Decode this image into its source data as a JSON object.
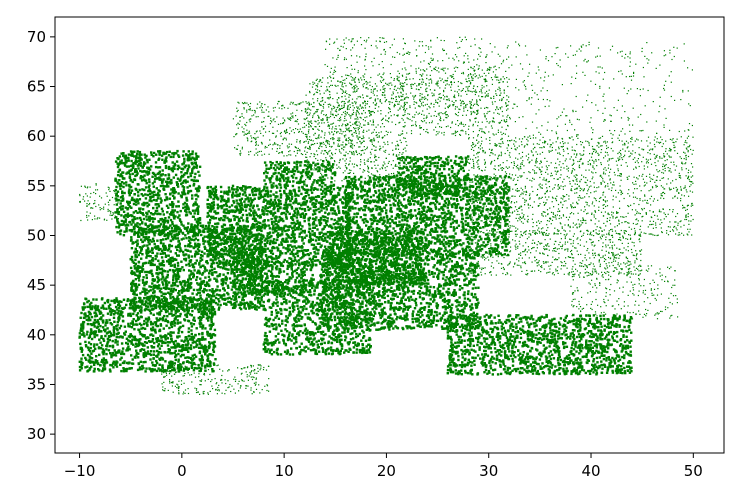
{
  "chart_data": {
    "type": "scatter",
    "title": "",
    "xlabel": "",
    "ylabel": "",
    "xlim": [
      -12.4,
      53
    ],
    "ylim": [
      28.1,
      72.0
    ],
    "xticks": [
      -10,
      0,
      10,
      20,
      30,
      40,
      50
    ],
    "yticks": [
      30,
      35,
      40,
      45,
      50,
      55,
      60,
      65,
      70
    ],
    "xtick_labels": [
      "−10",
      "0",
      "10",
      "20",
      "30",
      "40",
      "50"
    ],
    "ytick_labels": [
      "30",
      "35",
      "40",
      "45",
      "50",
      "55",
      "60",
      "65",
      "70"
    ],
    "grid": false,
    "legend": "none",
    "point_color": "#008000",
    "series": [
      {
        "description": "dense geographic point cloud of Europe (lon, lat)",
        "density_regions": [
          {
            "lon": [
              -10.0,
              3.3
            ],
            "lat": [
              36.3,
              43.7
            ],
            "density": 0.9
          },
          {
            "lon": [
              -6.5,
              1.8
            ],
            "lat": [
              50.0,
              58.5
            ],
            "density": 0.85
          },
          {
            "lon": [
              -10.0,
              -6.0
            ],
            "lat": [
              51.5,
              55.3
            ],
            "density": 0.5
          },
          {
            "lon": [
              -5.0,
              8.0
            ],
            "lat": [
              42.5,
              51.0
            ],
            "density": 0.95
          },
          {
            "lon": [
              2.5,
              16.5
            ],
            "lat": [
              47.0,
              55.0
            ],
            "density": 0.97
          },
          {
            "lon": [
              8.0,
              15.0
            ],
            "lat": [
              55.0,
              57.5
            ],
            "density": 0.8
          },
          {
            "lon": [
              5.0,
              13.0
            ],
            "lat": [
              44.0,
              47.5
            ],
            "density": 0.9
          },
          {
            "lon": [
              8.0,
              18.5
            ],
            "lat": [
              38.0,
              45.5
            ],
            "density": 0.75
          },
          {
            "lon": [
              13.5,
              29.0
            ],
            "lat": [
              40.5,
              48.5
            ],
            "density": 0.85
          },
          {
            "lon": [
              14.0,
              24.0
            ],
            "lat": [
              45.0,
              50.5
            ],
            "density": 0.95
          },
          {
            "lon": [
              16.0,
              32.0
            ],
            "lat": [
              48.0,
              56.0
            ],
            "density": 0.92
          },
          {
            "lon": [
              21.0,
              28.0
            ],
            "lat": [
              54.0,
              58.0
            ],
            "density": 0.85
          },
          {
            "lon": [
              26.0,
              44.0
            ],
            "lat": [
              36.0,
              42.0
            ],
            "density": 0.9
          },
          {
            "lon": [
              5.0,
              19.0
            ],
            "lat": [
              58.0,
              63.5
            ],
            "density": 0.5
          },
          {
            "lon": [
              12.0,
              22.0
            ],
            "lat": [
              55.5,
              66.0
            ],
            "density": 0.55
          },
          {
            "lon": [
              14.0,
              30.0
            ],
            "lat": [
              63.0,
              70.0
            ],
            "density": 0.25
          },
          {
            "lon": [
              21.0,
              32.0
            ],
            "lat": [
              60.0,
              67.0
            ],
            "density": 0.5
          },
          {
            "lon": [
              28.0,
              50.0
            ],
            "lat": [
              50.0,
              60.0
            ],
            "density": 0.55
          },
          {
            "lon": [
              28.0,
              50.0
            ],
            "lat": [
              60.0,
              69.5
            ],
            "density": 0.12
          },
          {
            "lon": [
              28.0,
              45.0
            ],
            "lat": [
              46.0,
              50.5
            ],
            "density": 0.6
          },
          {
            "lon": [
              38.0,
              48.5
            ],
            "lat": [
              41.5,
              47.0
            ],
            "density": 0.3
          },
          {
            "lon": [
              -2.0,
              8.5
            ],
            "lat": [
              34.0,
              37.0
            ],
            "density": 0.55
          }
        ]
      }
    ]
  }
}
